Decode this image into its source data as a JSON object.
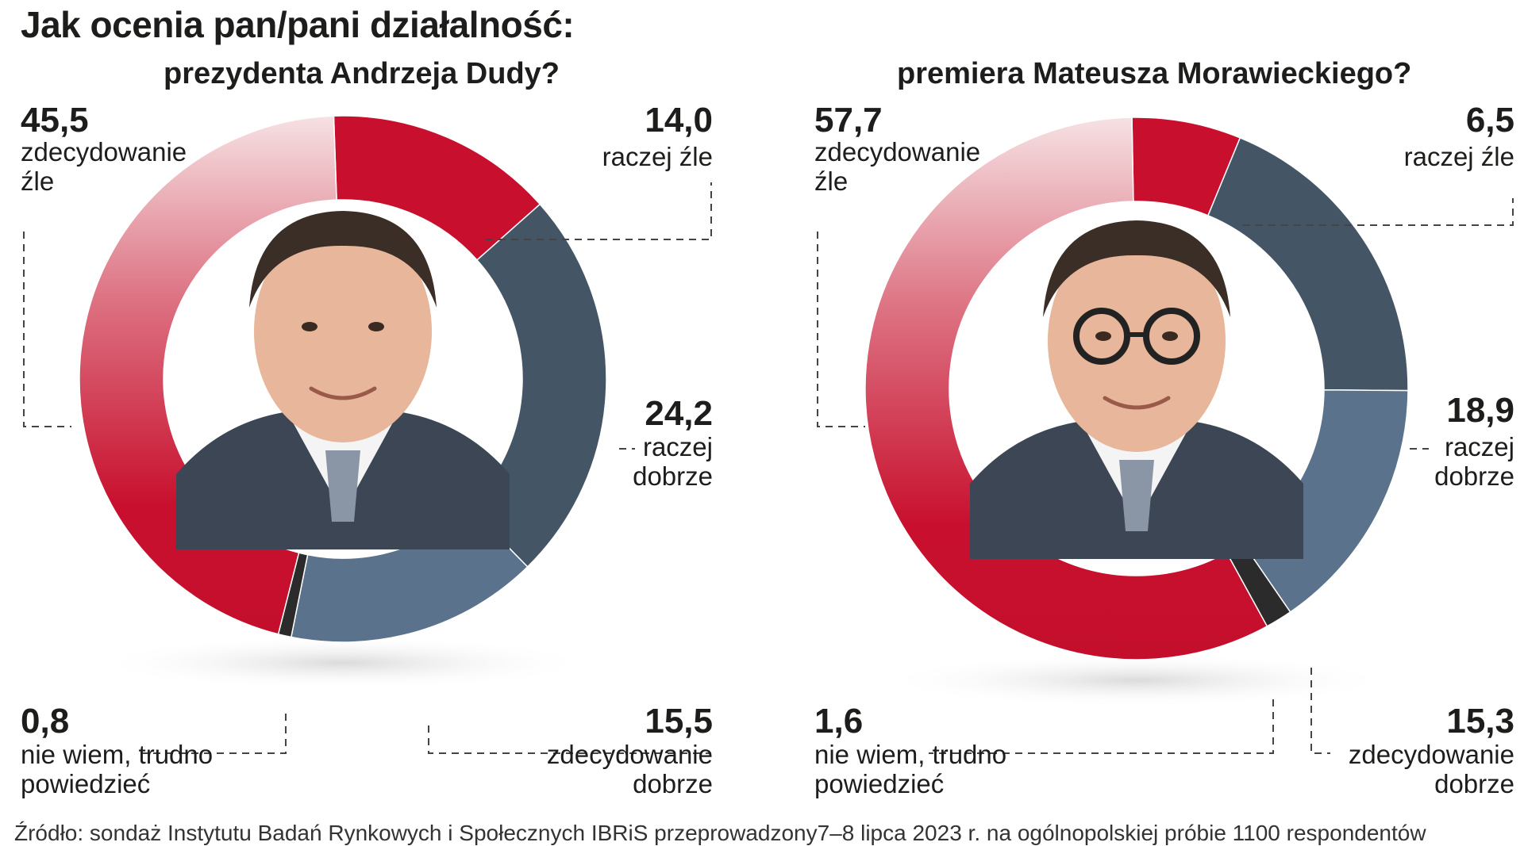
{
  "title": "Jak ocenia pan/pani działalność:",
  "source": "Źródło: sondaż Instytutu Badań Rynkowych i Społecznych IBRiS przeprowadzony7–8 lipca 2023 r. na ogólnopolskiej próbie 1100 respondentów",
  "colors": {
    "strongly_bad": "#c8102e",
    "rather_bad": "#c8102e",
    "rather_good": "#445566",
    "strongly_good": "#5b728c",
    "dont_know": "#2b2b2b"
  },
  "chart_data": [
    {
      "type": "pie",
      "variant": "donut",
      "title": "prezydenta Andrzeja Dudy?",
      "center_image": "portrait-photo",
      "slices": [
        {
          "key": "rather_bad",
          "value": "14,0",
          "num": 14.0,
          "label": "raczej źle"
        },
        {
          "key": "rather_good",
          "value": "24,2",
          "num": 24.2,
          "label": "raczej dobrze"
        },
        {
          "key": "strongly_good",
          "value": "15,5",
          "num": 15.5,
          "label": "zdecydowanie dobrze"
        },
        {
          "key": "dont_know",
          "value": "0,8",
          "num": 0.8,
          "label": "nie wiem, trudno powiedzieć"
        },
        {
          "key": "strongly_bad",
          "value": "45,5",
          "num": 45.5,
          "label": "zdecydowanie źle"
        }
      ]
    },
    {
      "type": "pie",
      "variant": "donut",
      "title": "premiera Mateusza Morawieckiego?",
      "center_image": "portrait-photo",
      "slices": [
        {
          "key": "rather_bad",
          "value": "6,5",
          "num": 6.5,
          "label": "raczej źle"
        },
        {
          "key": "rather_good",
          "value": "18,9",
          "num": 18.9,
          "label": "raczej dobrze"
        },
        {
          "key": "strongly_good",
          "value": "15,3",
          "num": 15.3,
          "label": "zdecydowanie dobrze"
        },
        {
          "key": "dont_know",
          "value": "1,6",
          "num": 1.6,
          "label": "nie wiem, trudno powiedzieć"
        },
        {
          "key": "strongly_bad",
          "value": "57,7",
          "num": 57.7,
          "label": "zdecydowanie źle"
        }
      ]
    }
  ]
}
